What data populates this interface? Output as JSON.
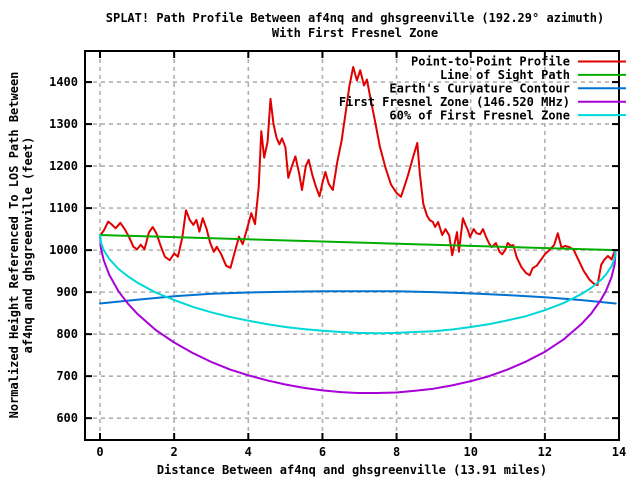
{
  "title": {
    "line1": "SPLAT! Path Profile Between af4nq and ghsgreenville (192.29° azimuth)",
    "line2": "With First Fresnel Zone"
  },
  "colors": {
    "background": "#ffffff",
    "border": "#000000",
    "grid": "#b0b0b0",
    "text": "#000000",
    "profile_red": "#e10000",
    "los_green": "#00ad00",
    "earth_blue": "#0072d0",
    "fresnel_magenta": "#a800d8",
    "fresnel60_cyan": "#00d8d8"
  },
  "chart_data": {
    "type": "line",
    "grid": true,
    "legend_position": "top-right-inside",
    "x_axis": {
      "label": "Distance Between af4nq and ghsgreenville (13.91 miles)",
      "min": -0.405,
      "max": 14,
      "ticks": [
        0,
        2,
        4,
        6,
        8,
        10,
        12,
        14
      ]
    },
    "y_axis": {
      "label_line1": "Normalized Height Referenced To LOS Path Between",
      "label_line2": "af4nq and ghsgreenville (feet)",
      "min": 548,
      "max": 1474,
      "ticks": [
        600,
        700,
        800,
        900,
        1000,
        1100,
        1200,
        1300,
        1400
      ]
    },
    "series": [
      {
        "name": "Point-to-Point Profile",
        "color": "#e10000",
        "points": [
          [
            0,
            1035
          ],
          [
            0.1,
            1046
          ],
          [
            0.22,
            1068
          ],
          [
            0.33,
            1060
          ],
          [
            0.42,
            1052
          ],
          [
            0.55,
            1065
          ],
          [
            0.68,
            1048
          ],
          [
            0.78,
            1032
          ],
          [
            0.9,
            1008
          ],
          [
            1.0,
            1002
          ],
          [
            1.1,
            1013
          ],
          [
            1.2,
            1002
          ],
          [
            1.32,
            1042
          ],
          [
            1.42,
            1055
          ],
          [
            1.52,
            1040
          ],
          [
            1.63,
            1012
          ],
          [
            1.75,
            984
          ],
          [
            1.88,
            976
          ],
          [
            2.0,
            992
          ],
          [
            2.1,
            984
          ],
          [
            2.22,
            1030
          ],
          [
            2.32,
            1095
          ],
          [
            2.42,
            1072
          ],
          [
            2.52,
            1060
          ],
          [
            2.6,
            1072
          ],
          [
            2.68,
            1044
          ],
          [
            2.77,
            1076
          ],
          [
            2.87,
            1052
          ],
          [
            2.97,
            1018
          ],
          [
            3.07,
            996
          ],
          [
            3.15,
            1008
          ],
          [
            3.27,
            990
          ],
          [
            3.4,
            963
          ],
          [
            3.52,
            958
          ],
          [
            3.65,
            1000
          ],
          [
            3.75,
            1032
          ],
          [
            3.85,
            1014
          ],
          [
            3.97,
            1052
          ],
          [
            4.08,
            1088
          ],
          [
            4.18,
            1062
          ],
          [
            4.28,
            1150
          ],
          [
            4.35,
            1283
          ],
          [
            4.43,
            1220
          ],
          [
            4.52,
            1258
          ],
          [
            4.6,
            1360
          ],
          [
            4.68,
            1300
          ],
          [
            4.76,
            1268
          ],
          [
            4.84,
            1252
          ],
          [
            4.91,
            1266
          ],
          [
            5.0,
            1245
          ],
          [
            5.08,
            1172
          ],
          [
            5.16,
            1196
          ],
          [
            5.27,
            1223
          ],
          [
            5.37,
            1183
          ],
          [
            5.45,
            1143
          ],
          [
            5.55,
            1200
          ],
          [
            5.63,
            1215
          ],
          [
            5.73,
            1178
          ],
          [
            5.82,
            1152
          ],
          [
            5.92,
            1128
          ],
          [
            6.0,
            1160
          ],
          [
            6.08,
            1186
          ],
          [
            6.17,
            1158
          ],
          [
            6.28,
            1143
          ],
          [
            6.4,
            1210
          ],
          [
            6.52,
            1262
          ],
          [
            6.63,
            1330
          ],
          [
            6.73,
            1392
          ],
          [
            6.83,
            1436
          ],
          [
            6.93,
            1404
          ],
          [
            7.02,
            1428
          ],
          [
            7.12,
            1392
          ],
          [
            7.2,
            1406
          ],
          [
            7.3,
            1360
          ],
          [
            7.42,
            1306
          ],
          [
            7.55,
            1246
          ],
          [
            7.7,
            1196
          ],
          [
            7.85,
            1156
          ],
          [
            8.0,
            1136
          ],
          [
            8.12,
            1127
          ],
          [
            8.3,
            1176
          ],
          [
            8.45,
            1223
          ],
          [
            8.56,
            1255
          ],
          [
            8.63,
            1180
          ],
          [
            8.72,
            1110
          ],
          [
            8.82,
            1082
          ],
          [
            8.9,
            1071
          ],
          [
            8.98,
            1067
          ],
          [
            9.04,
            1055
          ],
          [
            9.12,
            1067
          ],
          [
            9.23,
            1036
          ],
          [
            9.32,
            1050
          ],
          [
            9.42,
            1035
          ],
          [
            9.5,
            988
          ],
          [
            9.63,
            1043
          ],
          [
            9.68,
            996
          ],
          [
            9.74,
            1040
          ],
          [
            9.79,
            1076
          ],
          [
            9.86,
            1060
          ],
          [
            9.92,
            1048
          ],
          [
            9.98,
            1031
          ],
          [
            10.08,
            1050
          ],
          [
            10.16,
            1040
          ],
          [
            10.25,
            1038
          ],
          [
            10.33,
            1050
          ],
          [
            10.42,
            1030
          ],
          [
            10.5,
            1015
          ],
          [
            10.57,
            1007
          ],
          [
            10.68,
            1017
          ],
          [
            10.78,
            996
          ],
          [
            10.85,
            990
          ],
          [
            10.93,
            1000
          ],
          [
            11.0,
            1017
          ],
          [
            11.08,
            1010
          ],
          [
            11.15,
            1012
          ],
          [
            11.24,
            983
          ],
          [
            11.37,
            959
          ],
          [
            11.5,
            945
          ],
          [
            11.59,
            940
          ],
          [
            11.67,
            957
          ],
          [
            11.78,
            963
          ],
          [
            11.88,
            975
          ],
          [
            12.0,
            990
          ],
          [
            12.12,
            1000
          ],
          [
            12.25,
            1012
          ],
          [
            12.35,
            1040
          ],
          [
            12.45,
            1006
          ],
          [
            12.55,
            1010
          ],
          [
            12.67,
            1007
          ],
          [
            12.78,
            1000
          ],
          [
            12.9,
            978
          ],
          [
            13.05,
            950
          ],
          [
            13.2,
            930
          ],
          [
            13.32,
            920
          ],
          [
            13.42,
            917
          ],
          [
            13.52,
            965
          ],
          [
            13.6,
            977
          ],
          [
            13.7,
            986
          ],
          [
            13.8,
            978
          ],
          [
            13.86,
            992
          ],
          [
            13.91,
            1000
          ]
        ]
      },
      {
        "name": "Line of Sight Path",
        "color": "#00ad00",
        "points": [
          [
            0,
            1036
          ],
          [
            13.91,
            1000
          ]
        ]
      },
      {
        "name": "Earth's Curvature Contour",
        "color": "#0072d0",
        "points": [
          [
            0,
            873
          ],
          [
            1,
            882
          ],
          [
            2,
            890
          ],
          [
            3,
            896
          ],
          [
            4,
            899
          ],
          [
            5,
            901
          ],
          [
            6,
            902
          ],
          [
            6.95,
            902
          ],
          [
            8,
            902
          ],
          [
            9,
            900
          ],
          [
            10,
            897
          ],
          [
            11,
            893
          ],
          [
            12,
            888
          ],
          [
            13,
            881
          ],
          [
            13.91,
            873
          ]
        ]
      },
      {
        "name": "First Fresnel Zone (146.520 MHz)",
        "color": "#a800d8",
        "points": [
          [
            0,
            1036
          ],
          [
            0.03,
            1003
          ],
          [
            0.1,
            976
          ],
          [
            0.25,
            941
          ],
          [
            0.5,
            902
          ],
          [
            0.75,
            873
          ],
          [
            1,
            849
          ],
          [
            1.5,
            810
          ],
          [
            2,
            780
          ],
          [
            2.5,
            755
          ],
          [
            3,
            734
          ],
          [
            3.5,
            716
          ],
          [
            4,
            702
          ],
          [
            4.5,
            690
          ],
          [
            5,
            680
          ],
          [
            5.5,
            672
          ],
          [
            6,
            666
          ],
          [
            6.5,
            662
          ],
          [
            6.95,
            660
          ],
          [
            7.5,
            660
          ],
          [
            8,
            661
          ],
          [
            8.5,
            665
          ],
          [
            9,
            670
          ],
          [
            9.5,
            678
          ],
          [
            10,
            688
          ],
          [
            10.5,
            700
          ],
          [
            11,
            716
          ],
          [
            11.5,
            735
          ],
          [
            12,
            758
          ],
          [
            12.5,
            787
          ],
          [
            13,
            825
          ],
          [
            13.25,
            849
          ],
          [
            13.5,
            880
          ],
          [
            13.65,
            903
          ],
          [
            13.8,
            936
          ],
          [
            13.88,
            966
          ],
          [
            13.91,
            1000
          ]
        ]
      },
      {
        "name": "60% of First Fresnel Zone",
        "color": "#00d8d8",
        "points": [
          [
            0,
            1036
          ],
          [
            0.03,
            1017
          ],
          [
            0.1,
            1000
          ],
          [
            0.25,
            979
          ],
          [
            0.5,
            955
          ],
          [
            0.75,
            938
          ],
          [
            1,
            923
          ],
          [
            1.5,
            899
          ],
          [
            2,
            881
          ],
          [
            2.5,
            865
          ],
          [
            3,
            852
          ],
          [
            3.5,
            841
          ],
          [
            4,
            832
          ],
          [
            4.5,
            824
          ],
          [
            5,
            817
          ],
          [
            5.5,
            812
          ],
          [
            6,
            808
          ],
          [
            6.5,
            805
          ],
          [
            6.95,
            803
          ],
          [
            7.5,
            802
          ],
          [
            8,
            803
          ],
          [
            8.5,
            805
          ],
          [
            9,
            807
          ],
          [
            9.5,
            811
          ],
          [
            10,
            817
          ],
          [
            10.5,
            824
          ],
          [
            11,
            833
          ],
          [
            11.5,
            843
          ],
          [
            12,
            857
          ],
          [
            12.5,
            874
          ],
          [
            13,
            896
          ],
          [
            13.25,
            910
          ],
          [
            13.5,
            928
          ],
          [
            13.65,
            942
          ],
          [
            13.8,
            962
          ],
          [
            13.88,
            980
          ],
          [
            13.91,
            1000
          ]
        ]
      }
    ]
  }
}
